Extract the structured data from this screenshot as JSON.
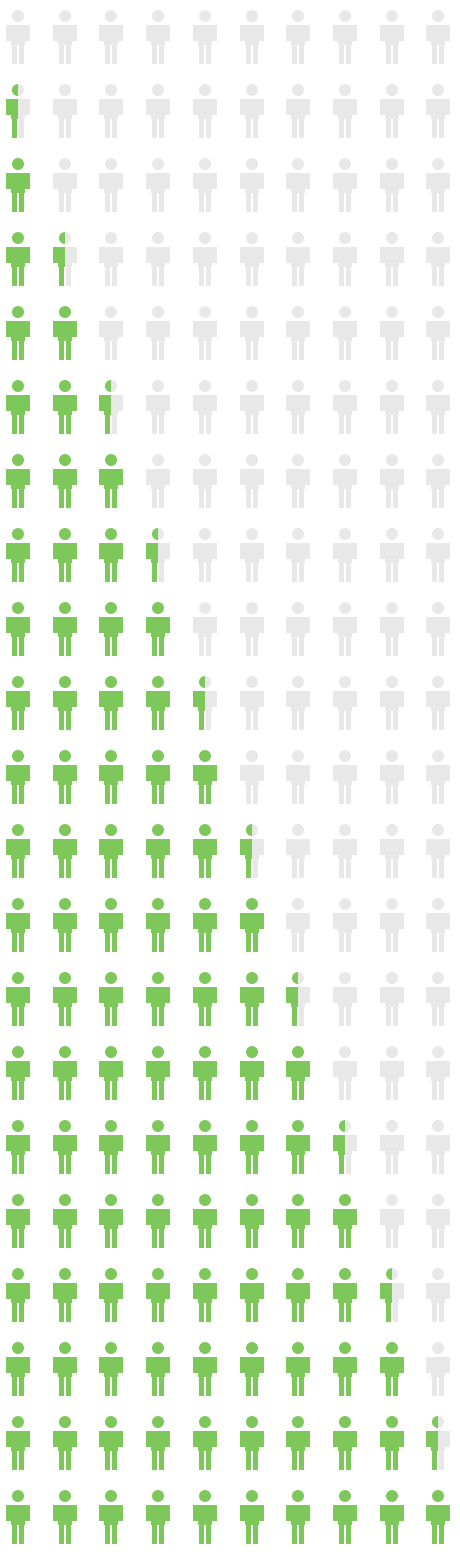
{
  "pictogram": {
    "icon": "person-icon",
    "rows": 21,
    "icons_per_row": 10,
    "colors": {
      "filled": "#7ec75b",
      "empty": "#e8e8e8"
    },
    "row_fill_counts": [
      0,
      0.5,
      1,
      1.5,
      2,
      2.5,
      3,
      3.5,
      4,
      4.5,
      5,
      5.5,
      6,
      6.5,
      7,
      7.5,
      8,
      8.5,
      9,
      9.5,
      10
    ]
  }
}
